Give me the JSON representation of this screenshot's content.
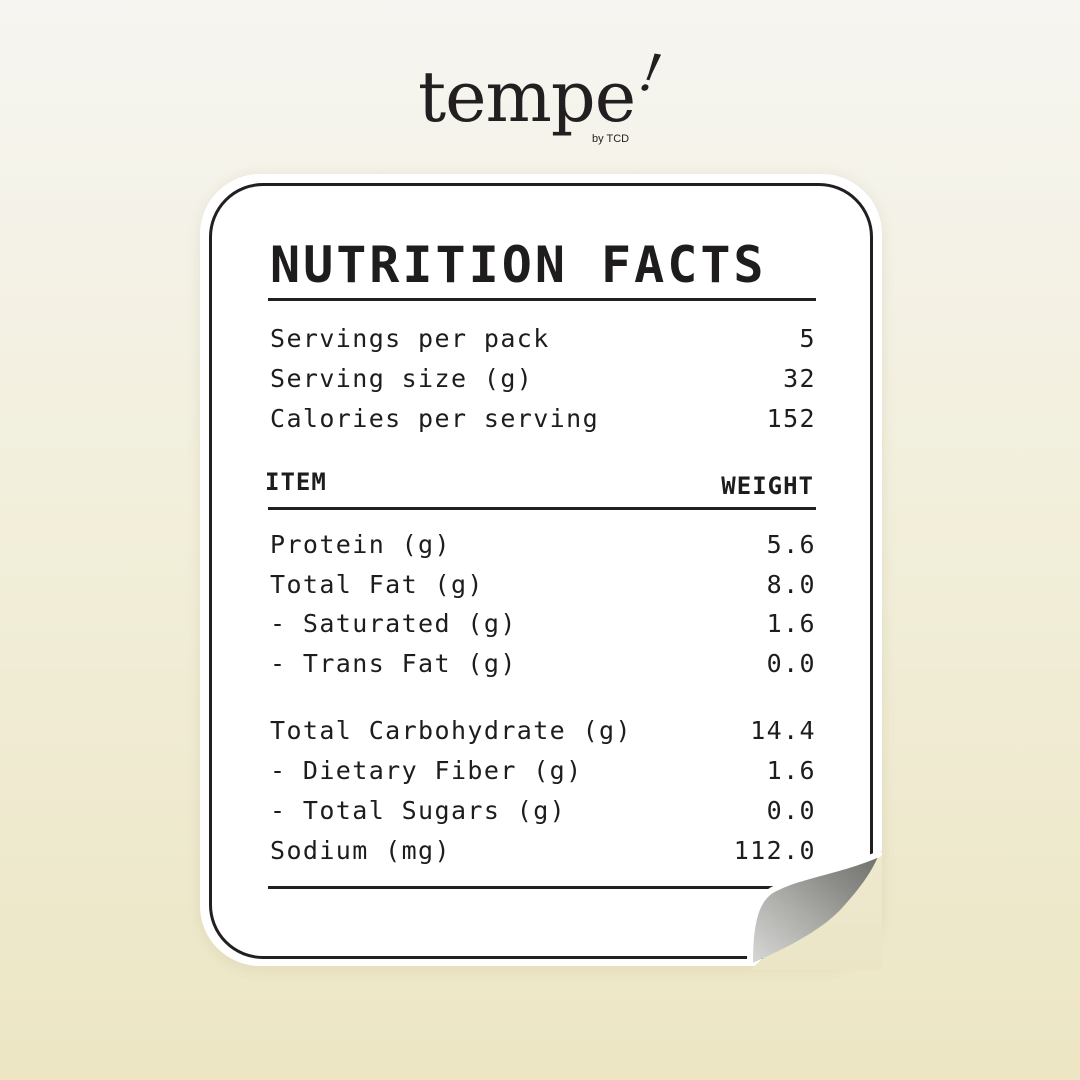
{
  "brand": {
    "name": "tempe",
    "mark": "!",
    "byline": "by TCD"
  },
  "label": {
    "title": "NUTRITION FACTS",
    "summary": [
      {
        "label": "Servings per pack",
        "value": "5"
      },
      {
        "label": "Serving size (g)",
        "value": "32"
      },
      {
        "label": "Calories per serving",
        "value": "152"
      }
    ],
    "headers": {
      "item": "ITEM",
      "weight": "WEIGHT"
    },
    "nutrients": [
      {
        "label": "Protein (g)",
        "value": "5.6"
      },
      {
        "label": "Total Fat (g)",
        "value": "8.0"
      },
      {
        "label": "- Saturated (g)",
        "value": "1.6"
      },
      {
        "label": "- Trans Fat (g)",
        "value": "0.0"
      },
      {
        "label": "Total Carbohydrate (g)",
        "value": "14.4"
      },
      {
        "label": "- Dietary Fiber (g)",
        "value": "1.6"
      },
      {
        "label": "- Total Sugars (g)",
        "value": "0.0"
      },
      {
        "label": "Sodium (mg)",
        "value": "112.0"
      }
    ]
  },
  "colors": {
    "ink": "#231f20",
    "card": "#ffffff",
    "background_top": "#f6f5f1",
    "background_bottom": "#ece6c4"
  }
}
